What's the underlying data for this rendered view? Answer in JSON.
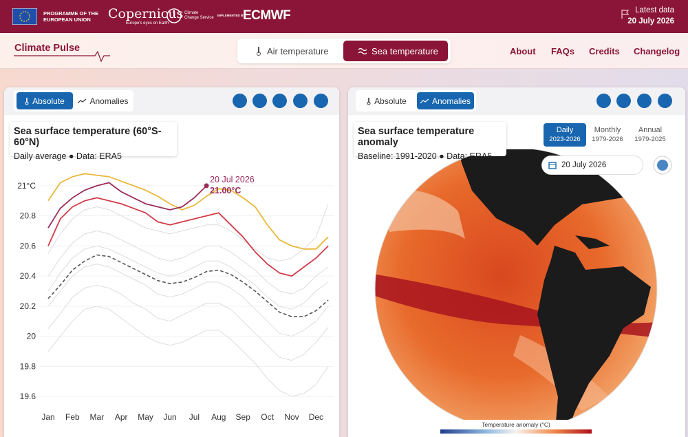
{
  "header": {
    "eu": [
      "PROGRAMME OF THE",
      "EUROPEAN UNION"
    ],
    "copernicus": "Copernicus",
    "tagline": "Europe's eyes on Earth",
    "c3s": [
      "Climate",
      "Change Service"
    ],
    "implemented_by": "IMPLEMENTED BY",
    "ecmwf": "ECMWF",
    "latest_label": "Latest data",
    "latest_date": "20 July 2026"
  },
  "nav": {
    "brand": "Climate Pulse",
    "tabs": [
      "Air temperature",
      "Sea temperature"
    ],
    "links": [
      "About",
      "FAQs",
      "Credits",
      "Changelog"
    ]
  },
  "left_panel": {
    "toggles": [
      "Absolute",
      "Anomalies"
    ]
  },
  "chart_data": {
    "type": "line",
    "title": "Sea surface temperature (60°S-60°N)",
    "subtitle": "Daily average ● Data: ERA5",
    "categories": [
      "Jan",
      null,
      "Feb",
      null,
      "Mar",
      null,
      "Apr",
      null,
      "May",
      null,
      "Jun",
      null,
      "Jul",
      null,
      "Aug",
      null,
      "Sep",
      null,
      "Oct",
      null,
      "Nov",
      null,
      "Dec",
      null
    ],
    "ylim": [
      19.5,
      21.1
    ],
    "yticks": [
      19.6,
      19.8,
      20,
      20.2,
      20.4,
      20.6,
      20.8,
      {
        "value": 21,
        "label": "21°C"
      }
    ],
    "grid": true,
    "series": [
      {
        "color": "#dcdcdc",
        "values": [
          20.55,
          20.68,
          20.78,
          20.84,
          20.86,
          20.84,
          20.8,
          20.76,
          20.72,
          20.7,
          20.68,
          20.7,
          20.72,
          20.74,
          20.74,
          20.7,
          20.64,
          20.58,
          20.52,
          20.5,
          20.52,
          20.58,
          20.66,
          20.88
        ]
      },
      {
        "color": "#dcdcdc",
        "values": [
          20.4,
          20.52,
          20.62,
          20.68,
          20.7,
          20.68,
          20.64,
          20.6,
          20.56,
          20.52,
          20.5,
          20.52,
          20.56,
          20.6,
          20.6,
          20.56,
          20.5,
          20.44,
          20.36,
          20.3,
          20.28,
          20.32,
          20.4,
          20.46
        ]
      },
      {
        "color": "#dcdcdc",
        "values": [
          20.3,
          20.42,
          20.52,
          20.58,
          20.6,
          20.58,
          20.54,
          20.5,
          20.46,
          20.42,
          20.4,
          20.42,
          20.46,
          20.5,
          20.5,
          20.46,
          20.4,
          20.34,
          20.26,
          20.2,
          20.18,
          20.22,
          20.3,
          20.36
        ]
      },
      {
        "color": "#dcdcdc",
        "values": [
          20.2,
          20.3,
          20.4,
          20.46,
          20.48,
          20.46,
          20.42,
          20.38,
          20.34,
          20.28,
          20.26,
          20.28,
          20.32,
          20.36,
          20.36,
          20.32,
          20.26,
          20.18,
          20.1,
          20.02,
          20.0,
          20.04,
          20.1,
          20.2
        ]
      },
      {
        "color": "#dcdcdc",
        "values": [
          20.05,
          20.15,
          20.26,
          20.32,
          20.34,
          20.32,
          20.28,
          20.22,
          20.18,
          20.12,
          20.1,
          20.14,
          20.18,
          20.22,
          20.22,
          20.18,
          20.1,
          20.02,
          19.94,
          19.86,
          19.84,
          19.88,
          19.96,
          20.06
        ]
      },
      {
        "color": "#dcdcdc",
        "values": [
          19.9,
          20.0,
          20.1,
          20.18,
          20.2,
          20.18,
          20.12,
          20.06,
          20.0,
          19.96,
          19.94,
          19.96,
          20.0,
          20.04,
          20.04,
          19.98,
          19.9,
          19.82,
          19.72,
          19.64,
          19.6,
          19.62,
          19.68,
          19.8
        ]
      },
      {
        "color": "#555555",
        "dashed": true,
        "values": [
          20.25,
          20.34,
          20.44,
          20.5,
          20.54,
          20.53,
          20.49,
          20.45,
          20.41,
          20.37,
          20.35,
          20.36,
          20.39,
          20.43,
          20.44,
          20.41,
          20.36,
          20.3,
          20.23,
          20.16,
          20.13,
          20.13,
          20.17,
          20.24
        ]
      },
      {
        "color": "#d23a48",
        "values": [
          20.6,
          20.78,
          20.86,
          20.9,
          20.92,
          20.9,
          20.88,
          20.85,
          20.82,
          20.76,
          20.74,
          20.76,
          20.78,
          20.8,
          20.82,
          20.74,
          20.66,
          20.56,
          20.48,
          20.42,
          20.4,
          20.46,
          20.52,
          20.6
        ]
      },
      {
        "color": "#e9b83a",
        "values": [
          20.9,
          21.02,
          21.06,
          21.08,
          21.07,
          21.06,
          21.03,
          21.0,
          20.97,
          20.93,
          20.88,
          20.84,
          20.87,
          20.93,
          20.98,
          20.97,
          20.92,
          20.86,
          20.74,
          20.64,
          20.6,
          20.58,
          20.58,
          20.66
        ]
      },
      {
        "color": "#9b2c5a",
        "values": [
          20.72,
          20.85,
          20.92,
          20.97,
          21.0,
          21.02,
          20.96,
          20.92,
          20.88,
          20.86,
          20.84,
          20.86,
          20.92,
          21.0,
          null,
          null,
          null,
          null,
          null,
          null,
          null,
          null,
          null,
          null
        ]
      }
    ],
    "annotation": {
      "date": "20 Jul 2026",
      "value_label": "21.00°C"
    }
  },
  "right_panel": {
    "toggles": [
      "Absolute",
      "Anomalies"
    ],
    "title": "Sea surface temperature anomaly",
    "subtitle": "Baseline: 1991-2020 ● Data: ERA5",
    "periods": [
      {
        "label": "Daily",
        "range": "2023-2026"
      },
      {
        "label": "Monthly",
        "range": "1979-2026"
      },
      {
        "label": "Annual",
        "range": "1979-2025"
      }
    ],
    "date": "20 July 2026",
    "legend_title": "Temperature anomaly (°C)"
  }
}
